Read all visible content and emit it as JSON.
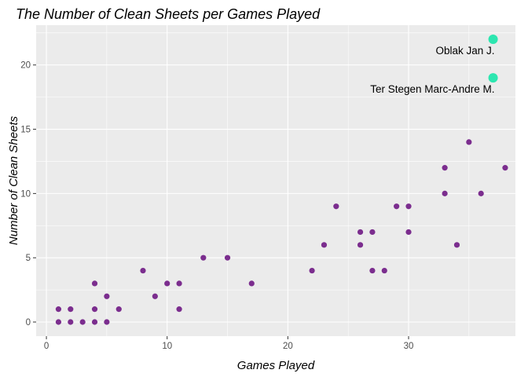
{
  "chart_data": {
    "type": "scatter",
    "title": "The Number of Clean Sheets per Games Played",
    "xlabel": "Games Played",
    "ylabel": "Number of Clean Sheets",
    "xlim": [
      -0.85,
      38.85
    ],
    "ylim": [
      -1.1,
      23.1
    ],
    "xticks": [
      0,
      10,
      20,
      30
    ],
    "yticks": [
      0,
      5,
      10,
      15,
      20
    ],
    "grid": true,
    "colors": {
      "panel": "#ebebeb",
      "grid": "#ffffff",
      "points": "#7b2d8e",
      "highlight": "#2de6b0"
    },
    "points": [
      {
        "x": 1,
        "y": 0
      },
      {
        "x": 1,
        "y": 1
      },
      {
        "x": 2,
        "y": 0
      },
      {
        "x": 2,
        "y": 1
      },
      {
        "x": 3,
        "y": 0
      },
      {
        "x": 4,
        "y": 0
      },
      {
        "x": 4,
        "y": 1
      },
      {
        "x": 4,
        "y": 3
      },
      {
        "x": 5,
        "y": 0
      },
      {
        "x": 5,
        "y": 2
      },
      {
        "x": 6,
        "y": 1
      },
      {
        "x": 8,
        "y": 4
      },
      {
        "x": 9,
        "y": 2
      },
      {
        "x": 10,
        "y": 3
      },
      {
        "x": 11,
        "y": 1
      },
      {
        "x": 11,
        "y": 3
      },
      {
        "x": 13,
        "y": 5
      },
      {
        "x": 15,
        "y": 5
      },
      {
        "x": 17,
        "y": 3
      },
      {
        "x": 22,
        "y": 4
      },
      {
        "x": 23,
        "y": 6
      },
      {
        "x": 24,
        "y": 9
      },
      {
        "x": 26,
        "y": 6
      },
      {
        "x": 26,
        "y": 7
      },
      {
        "x": 27,
        "y": 4
      },
      {
        "x": 27,
        "y": 7
      },
      {
        "x": 28,
        "y": 4
      },
      {
        "x": 29,
        "y": 9
      },
      {
        "x": 30,
        "y": 7
      },
      {
        "x": 30,
        "y": 9
      },
      {
        "x": 33,
        "y": 10
      },
      {
        "x": 33,
        "y": 12
      },
      {
        "x": 34,
        "y": 6
      },
      {
        "x": 35,
        "y": 14
      },
      {
        "x": 36,
        "y": 10
      },
      {
        "x": 38,
        "y": 12
      }
    ],
    "highlights": [
      {
        "label": "Oblak Jan J.",
        "x": 37,
        "y": 22
      },
      {
        "label": "Ter Stegen Marc-Andre M.",
        "x": 37,
        "y": 19
      }
    ]
  }
}
